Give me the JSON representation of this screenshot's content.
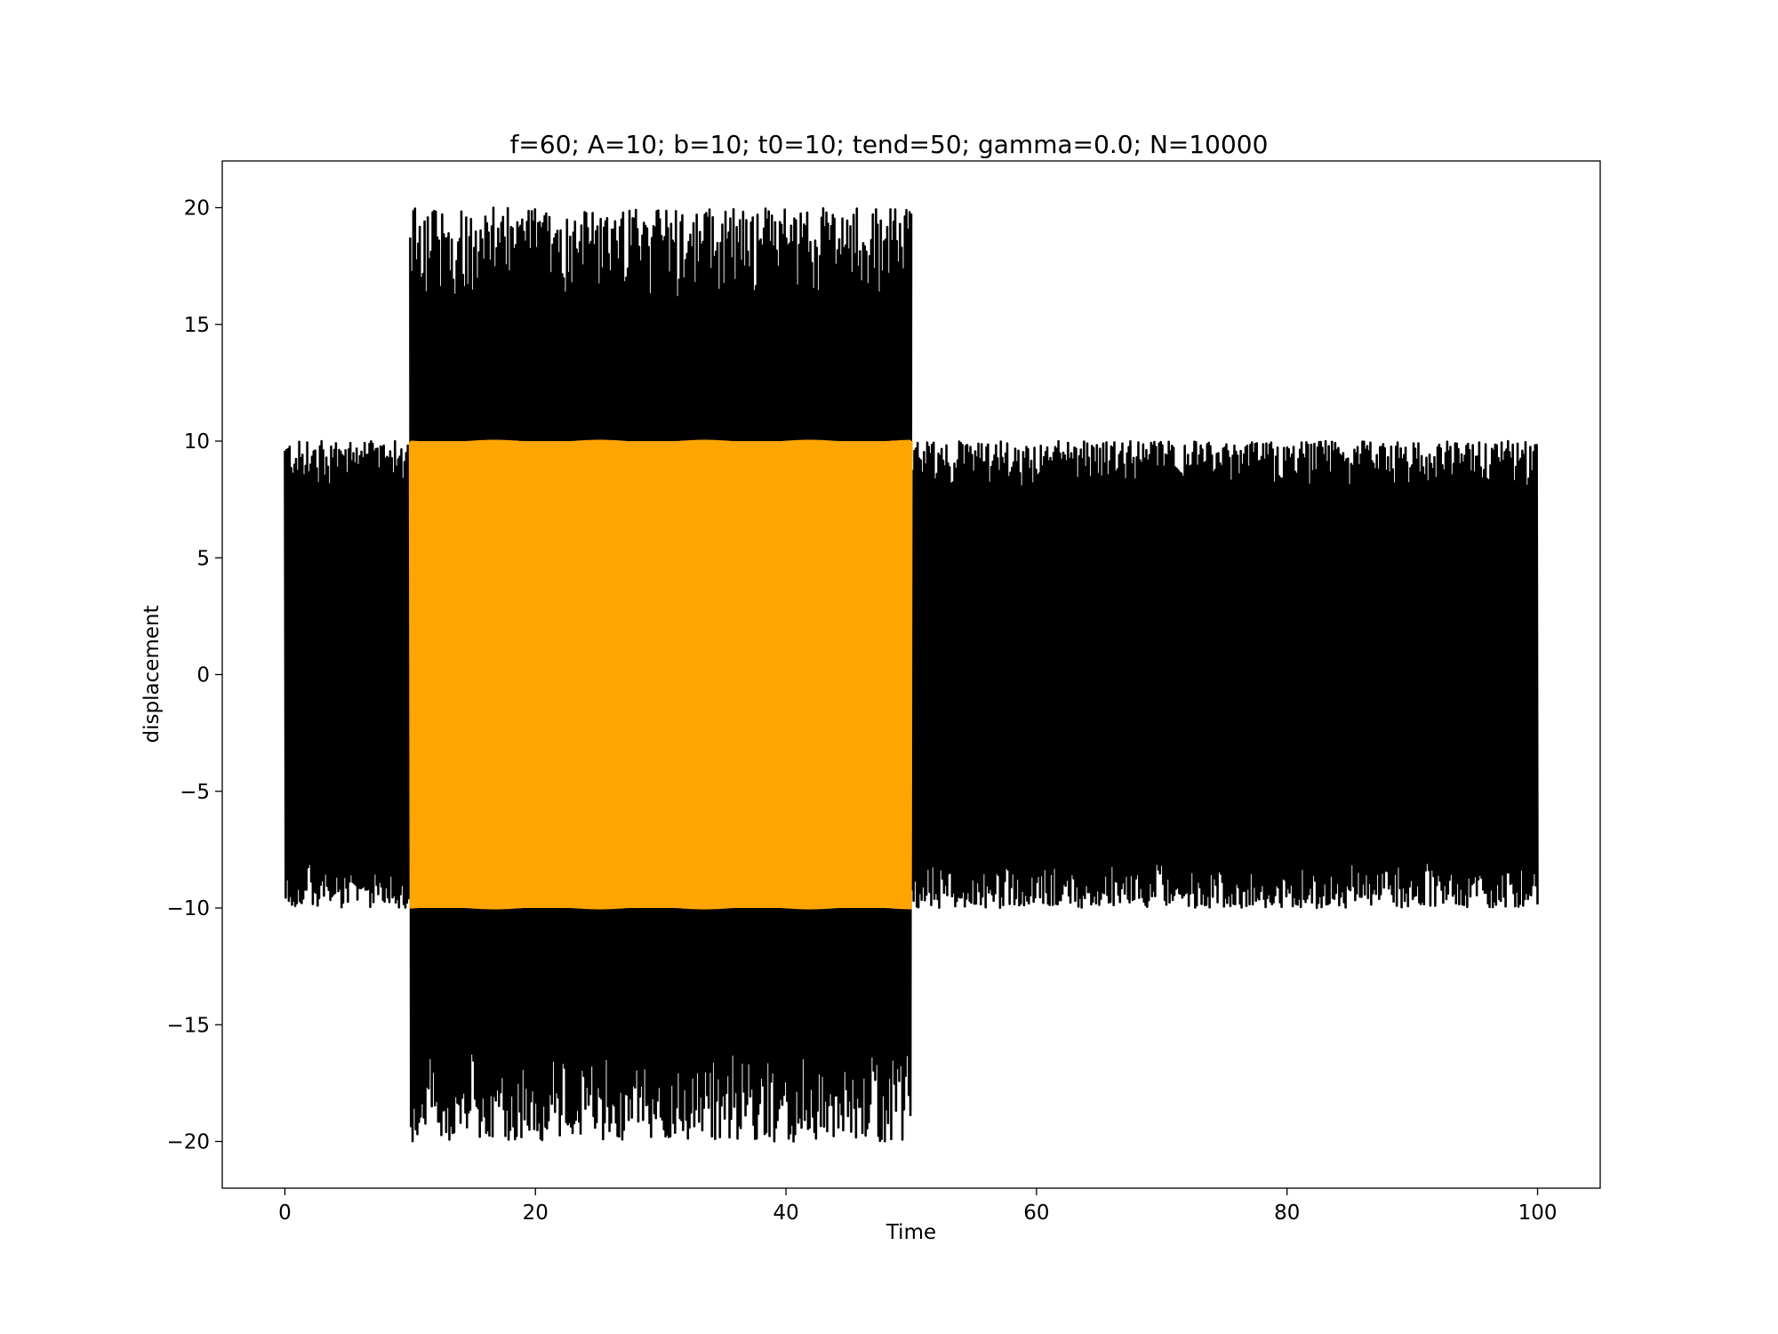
{
  "chart_data": {
    "type": "line",
    "title": "f=60; A=10; b=10; t0=10; tend=50; gamma=0.0; N=10000",
    "xlabel": "Time",
    "ylabel": "displacement",
    "xlim": [
      -5,
      105
    ],
    "ylim": [
      -22,
      22
    ],
    "xticks": [
      0,
      20,
      40,
      60,
      80,
      100
    ],
    "yticks": [
      20,
      15,
      10,
      5,
      0,
      -5,
      -10,
      -15,
      -20
    ],
    "xtick_labels": [
      "0",
      "20",
      "40",
      "60",
      "80",
      "100"
    ],
    "ytick_labels": [
      "20",
      "15",
      "10",
      "5",
      "0",
      "−5",
      "−10",
      "−15",
      "−20"
    ],
    "grid": false,
    "legend": null,
    "series": [
      {
        "color": "#000000",
        "description": "displacement signal, amplitude ~10 outside forcing window and up to ~20 inside",
        "segments": [
          {
            "x_start": 0,
            "x_end": 10,
            "amplitude": 10
          },
          {
            "x_start": 10,
            "x_end": 50,
            "amplitude": 20
          },
          {
            "x_start": 50,
            "x_end": 100,
            "amplitude": 10
          }
        ]
      },
      {
        "color": "#FFA500",
        "description": "forcing signal A*sin, amplitude 10",
        "segments": [
          {
            "x_start": 10,
            "x_end": 50,
            "amplitude": 10
          }
        ]
      }
    ]
  }
}
